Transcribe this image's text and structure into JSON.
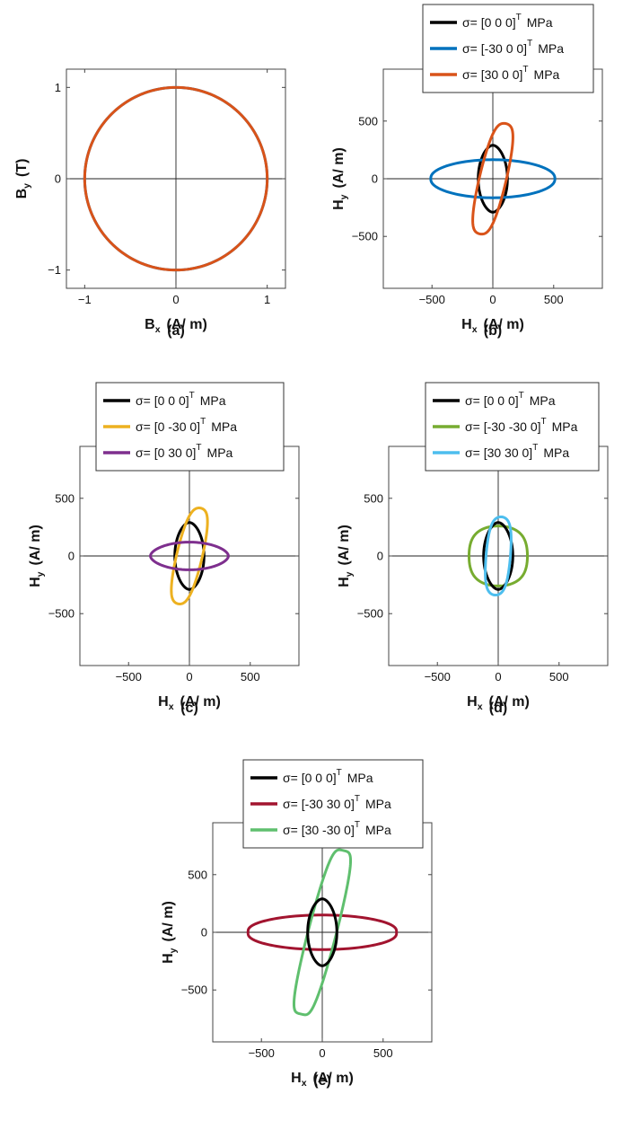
{
  "chart_data": [
    {
      "id": "a",
      "type": "line",
      "caption": "(a)",
      "xlabel": {
        "main": "B",
        "sub": "x",
        "unit": "(A/ m)"
      },
      "ylabel": {
        "main": "B",
        "sub": "y",
        "unit": "(T)"
      },
      "xlim": [
        -1.2,
        1.2
      ],
      "ylim": [
        -1.2,
        1.2
      ],
      "xticks": [
        -1,
        0,
        1
      ],
      "yticks": [
        -1,
        0,
        1
      ],
      "xtick_labels": [
        "−1",
        "0",
        "1"
      ],
      "ytick_labels": [
        "−1",
        "0",
        "1"
      ],
      "legend": [],
      "series": [
        {
          "color": "#0072BD",
          "rx": 1.0,
          "ry": 1.0,
          "k": 0.0,
          "w": 0.0,
          "rot": 0.02
        },
        {
          "color": "#D95319",
          "rx": 1.0,
          "ry": 1.0,
          "k": 0.0,
          "w": 0.0,
          "rot": -0.03
        }
      ]
    },
    {
      "id": "b",
      "type": "line",
      "caption": "(b)",
      "xlabel": {
        "main": "H",
        "sub": "x",
        "unit": "(A/ m)"
      },
      "ylabel": {
        "main": "H",
        "sub": "y",
        "unit": "(A/ m)"
      },
      "xlim": [
        -900,
        900
      ],
      "ylim": [
        -950,
        950
      ],
      "xticks": [
        -500,
        0,
        500
      ],
      "yticks": [
        -500,
        0,
        500
      ],
      "xtick_labels": [
        "−500",
        "0",
        "500"
      ],
      "ytick_labels": [
        "−500",
        "0",
        "500"
      ],
      "legend": [
        {
          "label": "σ= [0 0 0]",
          "sup": "T",
          "unit": "MPa",
          "color": "#000000"
        },
        {
          "label": "σ= [-30 0 0]",
          "sup": "T",
          "unit": "MPa",
          "color": "#0072BD"
        },
        {
          "label": "σ= [30 0 0]",
          "sup": "T",
          "unit": "MPa",
          "color": "#D95319"
        }
      ],
      "series": [
        {
          "color": "#000000",
          "rx": 120,
          "ry": 290,
          "k": -0.55,
          "w": 0.35,
          "rot": 0.0
        },
        {
          "color": "#0072BD",
          "rx": 510,
          "ry": 165,
          "k": 0.45,
          "w": -0.55,
          "rot": 0.0
        },
        {
          "color": "#D95319",
          "rx": 110,
          "ry": 490,
          "k": 0.0,
          "w": 0.35,
          "rot": -0.22
        }
      ]
    },
    {
      "id": "c",
      "type": "line",
      "caption": "(c)",
      "xlabel": {
        "main": "H",
        "sub": "x",
        "unit": "(A/ m)"
      },
      "ylabel": {
        "main": "H",
        "sub": "y",
        "unit": "(A/ m)"
      },
      "xlim": [
        -900,
        900
      ],
      "ylim": [
        -950,
        950
      ],
      "xticks": [
        -500,
        0,
        500
      ],
      "yticks": [
        -500,
        0,
        500
      ],
      "xtick_labels": [
        "−500",
        "0",
        "500"
      ],
      "ytick_labels": [
        "−500",
        "0",
        "500"
      ],
      "legend": [
        {
          "label": "σ= [0 0 0]",
          "sup": "T",
          "unit": "MPa",
          "color": "#000000"
        },
        {
          "label": "σ= [0 -30 0]",
          "sup": "T",
          "unit": "MPa",
          "color": "#EDB120"
        },
        {
          "label": "σ= [0 30 0]",
          "sup": "T",
          "unit": "MPa",
          "color": "#7E2F8E"
        }
      ],
      "series": [
        {
          "color": "#000000",
          "rx": 120,
          "ry": 290,
          "k": -0.55,
          "w": 0.35,
          "rot": 0.0
        },
        {
          "color": "#EDB120",
          "rx": 105,
          "ry": 425,
          "k": 0.0,
          "w": 0.3,
          "rot": -0.22
        },
        {
          "color": "#7E2F8E",
          "rx": 320,
          "ry": 120,
          "k": 0.35,
          "w": -0.55,
          "rot": 0.0
        }
      ]
    },
    {
      "id": "d",
      "type": "line",
      "caption": "(d)",
      "xlabel": {
        "main": "H",
        "sub": "x",
        "unit": "(A/ m)"
      },
      "ylabel": {
        "main": "H",
        "sub": "y",
        "unit": "(A/ m)"
      },
      "xlim": [
        -900,
        900
      ],
      "ylim": [
        -950,
        950
      ],
      "xticks": [
        -500,
        0,
        500
      ],
      "yticks": [
        -500,
        0,
        500
      ],
      "xtick_labels": [
        "−500",
        "0",
        "500"
      ],
      "ytick_labels": [
        "−500",
        "0",
        "500"
      ],
      "legend": [
        {
          "label": "σ= [0 0 0]",
          "sup": "T",
          "unit": "MPa",
          "color": "#000000"
        },
        {
          "label": "σ= [-30 -30 0]",
          "sup": "T",
          "unit": "MPa",
          "color": "#77AC30"
        },
        {
          "label": "σ= [30 30 0]",
          "sup": "T",
          "unit": "MPa",
          "color": "#4DBEEE"
        }
      ],
      "series": [
        {
          "color": "#77AC30",
          "rx": 240,
          "ry": 260,
          "k": 0.25,
          "w": 0.0,
          "rot": 0.0
        },
        {
          "color": "#000000",
          "rx": 120,
          "ry": 290,
          "k": -0.55,
          "w": 0.35,
          "rot": 0.0
        },
        {
          "color": "#4DBEEE",
          "rx": 100,
          "ry": 340,
          "k": 0.15,
          "w": 0.2,
          "rot": -0.08
        }
      ]
    },
    {
      "id": "e",
      "type": "line",
      "caption": "(e)",
      "xlabel": {
        "main": "H",
        "sub": "x",
        "unit": "(A/ m)"
      },
      "ylabel": {
        "main": "H",
        "sub": "y",
        "unit": "(A/ m)"
      },
      "xlim": [
        -900,
        900
      ],
      "ylim": [
        -950,
        950
      ],
      "xticks": [
        -500,
        0,
        500
      ],
      "yticks": [
        -500,
        0,
        500
      ],
      "xtick_labels": [
        "−500",
        "0",
        "500"
      ],
      "ytick_labels": [
        "−500",
        "0",
        "500"
      ],
      "legend": [
        {
          "label": "σ= [0 0 0]",
          "sup": "T",
          "unit": "MPa",
          "color": "#000000"
        },
        {
          "label": "σ= [-30 30 0]",
          "sup": "T",
          "unit": "MPa",
          "color": "#A2142F"
        },
        {
          "label": "σ= [30 -30 0]",
          "sup": "T",
          "unit": "MPa",
          "color": "#5FBF6E"
        }
      ],
      "series": [
        {
          "color": "#A2142F",
          "rx": 610,
          "ry": 150,
          "k": 0.5,
          "w": -0.55,
          "rot": 0.0
        },
        {
          "color": "#5FBF6E",
          "rx": 115,
          "ry": 730,
          "k": 0.0,
          "w": 0.5,
          "rot": -0.24
        },
        {
          "color": "#000000",
          "rx": 120,
          "ry": 290,
          "k": -0.55,
          "w": 0.35,
          "rot": 0.0
        }
      ]
    }
  ]
}
